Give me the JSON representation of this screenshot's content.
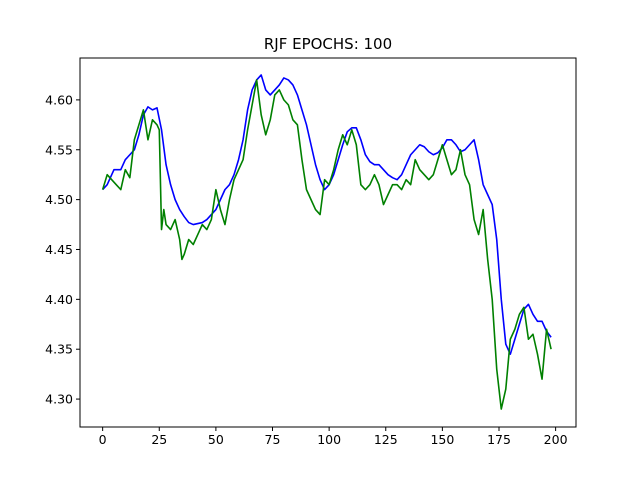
{
  "chart_data": {
    "type": "line",
    "title": "RJF EPOCHS: 100",
    "xlabel": "",
    "ylabel": "",
    "xlim": [
      -10,
      209
    ],
    "ylim": [
      4.272,
      4.642
    ],
    "xticks": [
      0,
      25,
      50,
      75,
      100,
      125,
      150,
      175,
      200
    ],
    "yticks": [
      4.3,
      4.35,
      4.4,
      4.45,
      4.5,
      4.55,
      4.6
    ],
    "ytick_labels": [
      "4.30",
      "4.35",
      "4.40",
      "4.45",
      "4.50",
      "4.55",
      "4.60"
    ],
    "grid": false,
    "legend": "none",
    "series": [
      {
        "color": "#0000ff",
        "x": [
          0,
          2,
          5,
          8,
          10,
          12,
          14,
          16,
          18,
          20,
          22,
          24,
          26,
          28,
          30,
          32,
          34,
          36,
          38,
          40,
          42,
          44,
          46,
          48,
          50,
          52,
          54,
          56,
          58,
          60,
          62,
          64,
          66,
          68,
          70,
          72,
          74,
          76,
          78,
          80,
          82,
          84,
          86,
          88,
          90,
          92,
          94,
          96,
          98,
          100,
          102,
          104,
          106,
          108,
          110,
          112,
          114,
          116,
          118,
          120,
          122,
          124,
          126,
          128,
          130,
          132,
          134,
          136,
          138,
          140,
          142,
          144,
          146,
          148,
          150,
          152,
          154,
          156,
          158,
          160,
          162,
          164,
          166,
          168,
          170,
          172,
          174,
          176,
          178,
          180,
          182,
          184,
          186,
          188,
          190,
          192,
          194,
          196,
          198
        ],
        "y": [
          4.51,
          4.515,
          4.53,
          4.53,
          4.54,
          4.545,
          4.55,
          4.565,
          4.585,
          4.593,
          4.59,
          4.592,
          4.57,
          4.535,
          4.515,
          4.5,
          4.49,
          4.483,
          4.477,
          4.475,
          4.476,
          4.477,
          4.48,
          4.485,
          4.49,
          4.5,
          4.51,
          4.515,
          4.525,
          4.54,
          4.56,
          4.59,
          4.61,
          4.62,
          4.625,
          4.61,
          4.605,
          4.61,
          4.615,
          4.622,
          4.62,
          4.615,
          4.605,
          4.59,
          4.575,
          4.555,
          4.535,
          4.52,
          4.51,
          4.515,
          4.525,
          4.54,
          4.555,
          4.568,
          4.572,
          4.572,
          4.56,
          4.545,
          4.538,
          4.535,
          4.535,
          4.53,
          4.525,
          4.522,
          4.52,
          4.525,
          4.535,
          4.545,
          4.55,
          4.555,
          4.553,
          4.548,
          4.545,
          4.547,
          4.552,
          4.56,
          4.56,
          4.555,
          4.548,
          4.55,
          4.555,
          4.56,
          4.54,
          4.515,
          4.505,
          4.495,
          4.46,
          4.4,
          4.355,
          4.345,
          4.36,
          4.375,
          4.39,
          4.395,
          4.385,
          4.378,
          4.378,
          4.368,
          4.362
        ]
      },
      {
        "color": "#008000",
        "x": [
          0,
          2,
          4,
          6,
          8,
          10,
          12,
          14,
          16,
          18,
          20,
          22,
          24,
          25,
          26,
          27,
          28,
          30,
          32,
          34,
          35,
          36,
          38,
          40,
          42,
          44,
          46,
          48,
          50,
          52,
          54,
          56,
          58,
          60,
          62,
          64,
          66,
          68,
          70,
          72,
          74,
          76,
          78,
          80,
          82,
          84,
          86,
          88,
          90,
          92,
          94,
          96,
          98,
          100,
          102,
          104,
          106,
          108,
          110,
          112,
          114,
          116,
          118,
          120,
          122,
          124,
          126,
          128,
          130,
          132,
          134,
          136,
          138,
          140,
          142,
          144,
          146,
          148,
          150,
          152,
          154,
          156,
          158,
          160,
          162,
          164,
          166,
          168,
          170,
          172,
          174,
          176,
          178,
          180,
          182,
          184,
          186,
          188,
          190,
          192,
          194,
          196,
          198
        ],
        "y": [
          4.51,
          4.525,
          4.52,
          4.515,
          4.51,
          4.53,
          4.522,
          4.56,
          4.575,
          4.59,
          4.56,
          4.58,
          4.575,
          4.57,
          4.47,
          4.49,
          4.475,
          4.47,
          4.48,
          4.46,
          4.44,
          4.445,
          4.46,
          4.455,
          4.465,
          4.475,
          4.47,
          4.48,
          4.51,
          4.49,
          4.475,
          4.5,
          4.52,
          4.53,
          4.54,
          4.57,
          4.595,
          4.62,
          4.585,
          4.565,
          4.58,
          4.605,
          4.61,
          4.6,
          4.595,
          4.58,
          4.575,
          4.54,
          4.51,
          4.5,
          4.49,
          4.485,
          4.52,
          4.515,
          4.53,
          4.55,
          4.565,
          4.555,
          4.57,
          4.555,
          4.515,
          4.51,
          4.515,
          4.525,
          4.515,
          4.495,
          4.505,
          4.515,
          4.515,
          4.51,
          4.52,
          4.515,
          4.54,
          4.53,
          4.525,
          4.52,
          4.525,
          4.54,
          4.555,
          4.54,
          4.525,
          4.53,
          4.55,
          4.525,
          4.515,
          4.48,
          4.465,
          4.49,
          4.44,
          4.4,
          4.33,
          4.29,
          4.31,
          4.36,
          4.37,
          4.385,
          4.392,
          4.36,
          4.365,
          4.345,
          4.32,
          4.37,
          4.35
        ]
      }
    ]
  }
}
